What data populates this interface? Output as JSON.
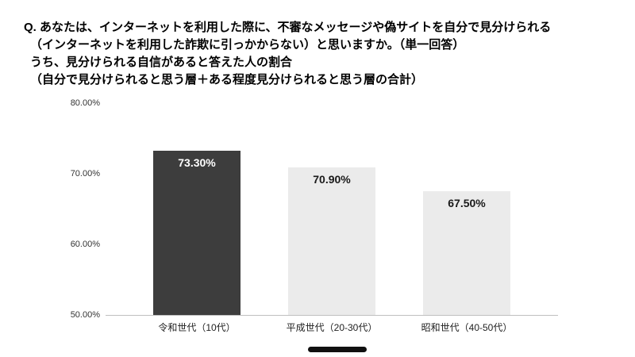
{
  "question": {
    "lines": [
      "Q. あなたは、インターネットを利用した際に、不審なメッセージや偽サイトを自分で見分けられる",
      "（インターネットを利用した詐欺に引っかからない）と思いますか。（単一回答）",
      "うち、見分けられる自信があると答えた人の割合",
      "（自分で見分けられると思う層＋ある程度見分けられると思う層の合計）"
    ]
  },
  "chart_data": {
    "type": "bar",
    "title": "",
    "xlabel": "",
    "ylabel": "",
    "categories": [
      "令和世代（10代）",
      "平成世代（20-30代）",
      "昭和世代（40-50代）"
    ],
    "values": [
      73.3,
      70.9,
      67.5
    ],
    "value_labels": [
      "73.30%",
      "70.90%",
      "67.50%"
    ],
    "ylim": [
      50,
      80
    ],
    "yticks": [
      {
        "label": "80.00%",
        "value": 80
      },
      {
        "label": "70.00%",
        "value": 70
      },
      {
        "label": "60.00%",
        "value": 60
      },
      {
        "label": "50.00%",
        "value": 50
      }
    ],
    "grid": false,
    "legend_position": "none",
    "bar_colors": [
      "#3d3d3d",
      "#ebebeb",
      "#ebebeb"
    ],
    "value_label_colors": [
      "#ffffff",
      "#1a1a1a",
      "#1a1a1a"
    ],
    "axis_line_color": "#c0c0c0"
  }
}
